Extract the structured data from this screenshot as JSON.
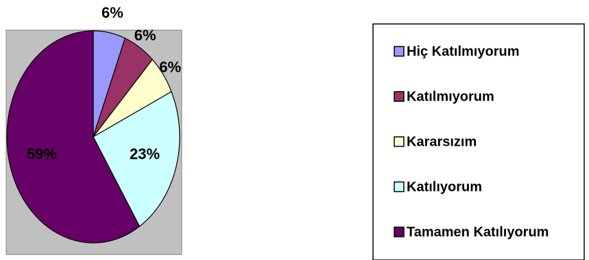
{
  "chart_data": {
    "type": "pie",
    "categories": [
      "Hiç Katılmıyorum",
      "Katılmıyorum",
      "Kararsızım",
      "Katılıyorum",
      "Tamamen Katılıyorum"
    ],
    "values": [
      6,
      6,
      6,
      23,
      59
    ],
    "labels": [
      "6%",
      "6%",
      "6%",
      "23%",
      "59%"
    ],
    "colors": [
      "#9999ff",
      "#993366",
      "#ffffcc",
      "#ccffff",
      "#660066"
    ],
    "plot_background": "#c0c0c0",
    "legend_position": "right",
    "title": ""
  }
}
